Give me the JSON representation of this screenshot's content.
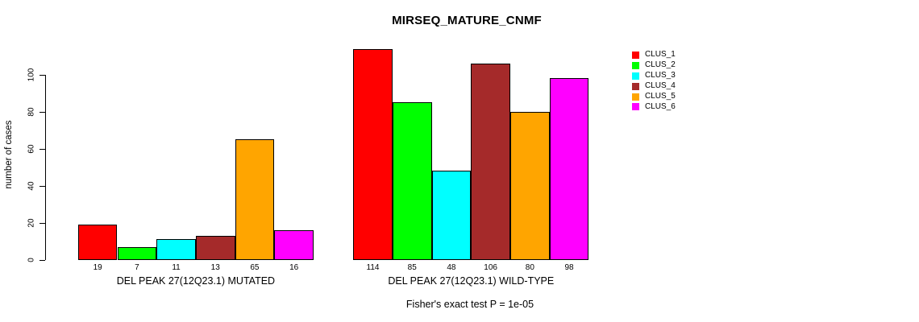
{
  "chart_data": {
    "type": "bar",
    "title": "MIRSEQ_MATURE_CNMF",
    "ylabel": "number of cases",
    "xlabel": "",
    "yticks": [
      0,
      20,
      40,
      60,
      80,
      100
    ],
    "ylim": [
      0,
      114
    ],
    "grid": false,
    "legend_position": "right",
    "clusters": [
      {
        "name": "CLUS_1",
        "color": "#FF0000"
      },
      {
        "name": "CLUS_2",
        "color": "#00FF00"
      },
      {
        "name": "CLUS_3",
        "color": "#00FFFF"
      },
      {
        "name": "CLUS_4",
        "color": "#A52A2A"
      },
      {
        "name": "CLUS_5",
        "color": "#FFA500"
      },
      {
        "name": "CLUS_6",
        "color": "#FF00FF"
      }
    ],
    "groups": [
      {
        "label": "DEL PEAK 27(12Q23.1) MUTATED",
        "values": [
          19,
          7,
          11,
          13,
          65,
          16
        ]
      },
      {
        "label": "DEL PEAK 27(12Q23.1) WILD-TYPE",
        "values": [
          114,
          85,
          48,
          106,
          80,
          98
        ]
      }
    ],
    "annotation": "Fisher's exact test P = 1e-05"
  }
}
